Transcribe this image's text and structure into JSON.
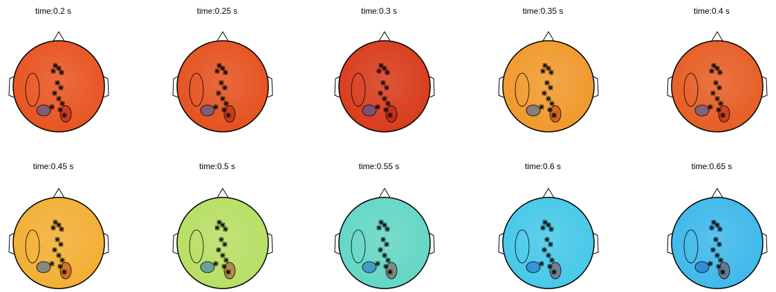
{
  "panels": [
    {
      "title": "time:0.2 s",
      "color": "#e8521f"
    },
    {
      "title": "time:0.25 s",
      "color": "#e4501d"
    },
    {
      "title": "time:0.3 s",
      "color": "#d8391a"
    },
    {
      "title": "time:0.35 s",
      "color": "#f0982a"
    },
    {
      "title": "time:0.4 s",
      "color": "#e65c22"
    },
    {
      "title": "time:0.45 s",
      "color": "#f2ae32"
    },
    {
      "title": "time:0.5 s",
      "color": "#b6de62"
    },
    {
      "title": "time:0.55 s",
      "color": "#62d6c4"
    },
    {
      "title": "time:0.6 s",
      "color": "#44c8e8"
    },
    {
      "title": "time:0.65 s",
      "color": "#3cb8ea"
    }
  ]
}
